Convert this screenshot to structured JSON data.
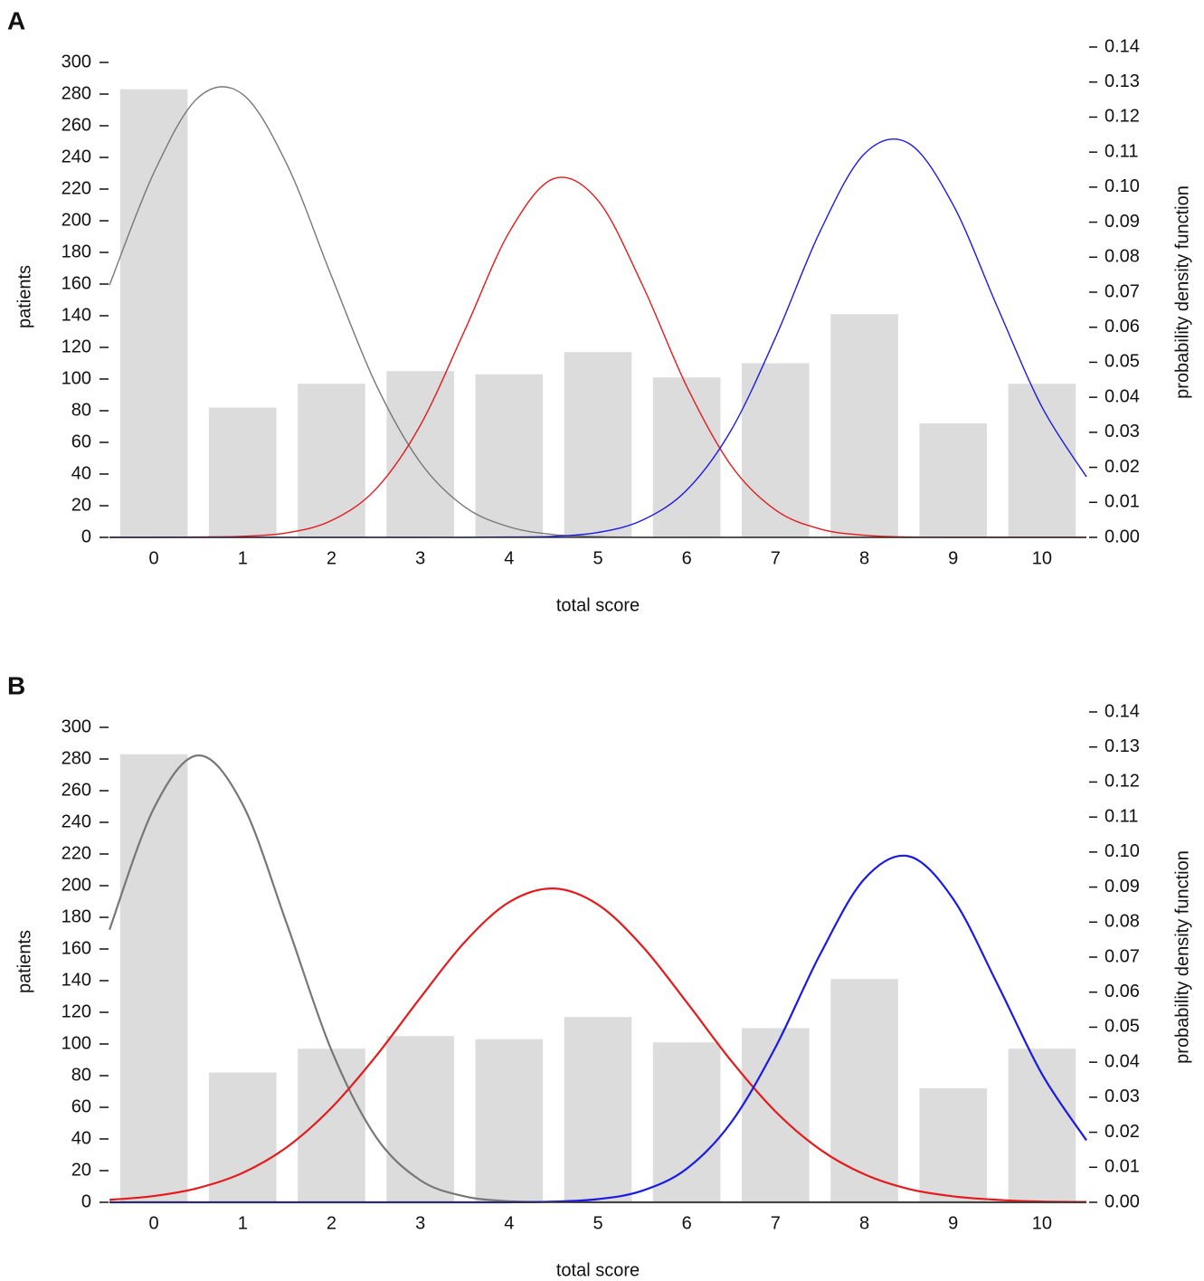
{
  "chart_data": [
    {
      "type": "bar",
      "panel_label": "A",
      "xlabel": "total score",
      "ylabel": "patients",
      "y2label": "probability density function",
      "categories": [
        0,
        1,
        2,
        3,
        4,
        5,
        6,
        7,
        8,
        9,
        10
      ],
      "values": [
        283,
        82,
        97,
        105,
        103,
        117,
        101,
        110,
        141,
        72,
        97
      ],
      "color": "#dcdcdc",
      "xlim": [
        -0.5,
        10.5
      ],
      "ylim": [
        0,
        300
      ],
      "yticks": [
        0,
        20,
        40,
        60,
        80,
        100,
        120,
        140,
        160,
        180,
        200,
        220,
        240,
        260,
        280,
        300
      ],
      "y2lim": [
        0,
        0.14
      ],
      "y2ticks": [
        {
          "value": 0,
          "label": "0.00"
        },
        {
          "value": 0.01,
          "label": "0.01"
        },
        {
          "value": 0.02,
          "label": "0.02"
        },
        {
          "value": 0.03,
          "label": "0.03"
        },
        {
          "value": 0.04,
          "label": "0.04"
        },
        {
          "value": 0.05,
          "label": "0.05"
        },
        {
          "value": 0.06,
          "label": "0.06"
        },
        {
          "value": 0.07,
          "label": "0.07"
        },
        {
          "value": 0.08,
          "label": "0.08"
        },
        {
          "value": 0.09,
          "label": "0.09"
        },
        {
          "value": 0.1,
          "label": "0.10"
        },
        {
          "value": 0.11,
          "label": "0.11"
        },
        {
          "value": 0.12,
          "label": "0.12"
        },
        {
          "value": 0.13,
          "label": "0.13"
        },
        {
          "value": 0.14,
          "label": "0.14"
        }
      ],
      "x": [
        -0.5,
        0,
        0.5,
        1,
        1.5,
        2,
        2.5,
        3,
        3.5,
        4,
        4.5,
        5,
        5.5,
        6,
        6.5,
        7,
        7.5,
        8,
        8.5,
        9,
        9.5,
        10,
        10.5
      ],
      "series": [
        {
          "color": "#777777",
          "axis": "y2",
          "values": [
            0.072,
            0.1041,
            0.1256,
            0.1265,
            0.1064,
            0.0746,
            0.0437,
            0.0214,
            0.0087,
            0.003,
            0.0008,
            0.0002,
            0,
            0,
            0,
            0,
            0,
            0,
            0,
            0,
            0,
            0,
            0
          ]
        },
        {
          "color": "#e41a1c",
          "axis": "y2",
          "values": [
            0,
            0,
            0.0001,
            0.0003,
            0.0013,
            0.0048,
            0.0138,
            0.032,
            0.0591,
            0.0871,
            0.1024,
            0.0962,
            0.0721,
            0.0431,
            0.0205,
            0.0078,
            0.0024,
            0.0006,
            0.0001,
            0,
            0,
            0,
            0
          ]
        },
        {
          "color": "#1a1ae6",
          "axis": "y2",
          "values": [
            0,
            0,
            0,
            0,
            0,
            0,
            0,
            0,
            0,
            0.0001,
            0.0003,
            0.0014,
            0.0049,
            0.0135,
            0.0306,
            0.0571,
            0.0873,
            0.1095,
            0.1125,
            0.0949,
            0.0656,
            0.0372,
            0.0173
          ]
        }
      ]
    },
    {
      "type": "bar",
      "panel_label": "B",
      "xlabel": "total score",
      "ylabel": "patients",
      "y2label": "probability density function",
      "categories": [
        0,
        1,
        2,
        3,
        4,
        5,
        6,
        7,
        8,
        9,
        10
      ],
      "values": [
        283,
        82,
        97,
        105,
        103,
        117,
        101,
        110,
        141,
        72,
        97
      ],
      "color": "#dcdcdc",
      "xlim": [
        -0.5,
        10.5
      ],
      "ylim": [
        0,
        300
      ],
      "yticks": [
        0,
        20,
        40,
        60,
        80,
        100,
        120,
        140,
        160,
        180,
        200,
        220,
        240,
        260,
        280,
        300
      ],
      "y2lim": [
        0,
        0.14
      ],
      "y2ticks": [
        {
          "value": 0,
          "label": "0.00"
        },
        {
          "value": 0.01,
          "label": "0.01"
        },
        {
          "value": 0.02,
          "label": "0.02"
        },
        {
          "value": 0.03,
          "label": "0.03"
        },
        {
          "value": 0.04,
          "label": "0.04"
        },
        {
          "value": 0.05,
          "label": "0.05"
        },
        {
          "value": 0.06,
          "label": "0.06"
        },
        {
          "value": 0.07,
          "label": "0.07"
        },
        {
          "value": 0.08,
          "label": "0.08"
        },
        {
          "value": 0.09,
          "label": "0.09"
        },
        {
          "value": 0.1,
          "label": "0.10"
        },
        {
          "value": 0.11,
          "label": "0.11"
        },
        {
          "value": 0.12,
          "label": "0.12"
        },
        {
          "value": 0.13,
          "label": "0.13"
        },
        {
          "value": 0.14,
          "label": "0.14"
        }
      ],
      "x": [
        -0.5,
        0,
        0.5,
        1,
        1.5,
        2,
        2.5,
        3,
        3.5,
        4,
        4.5,
        5,
        5.5,
        6,
        6.5,
        7,
        7.5,
        8,
        8.5,
        9,
        9.5,
        10,
        10.5
      ],
      "series": [
        {
          "color": "#777777",
          "axis": "y2",
          "values": [
            0.0778,
            0.1125,
            0.1276,
            0.1136,
            0.0793,
            0.0434,
            0.0187,
            0.0063,
            0.0017,
            0.0003,
            0.0001,
            0,
            0,
            0,
            0,
            0,
            0,
            0,
            0,
            0,
            0,
            0,
            0
          ]
        },
        {
          "color": "#e41a1c",
          "axis": "y2",
          "values": [
            0.0007,
            0.0018,
            0.0041,
            0.0084,
            0.0158,
            0.027,
            0.0417,
            0.0584,
            0.0743,
            0.0857,
            0.0896,
            0.085,
            0.0731,
            0.0571,
            0.0404,
            0.0259,
            0.0151,
            0.008,
            0.0038,
            0.0017,
            0.0007,
            0.0002,
            0.0001
          ]
        },
        {
          "color": "#1a1ae6",
          "axis": "y2",
          "values": [
            0,
            0,
            0,
            0,
            0,
            0,
            0,
            0,
            0,
            0,
            0.0002,
            0.0009,
            0.0033,
            0.0096,
            0.0228,
            0.0443,
            0.0707,
            0.0923,
            0.0988,
            0.0866,
            0.0622,
            0.0366,
            0.0177
          ]
        }
      ]
    }
  ]
}
